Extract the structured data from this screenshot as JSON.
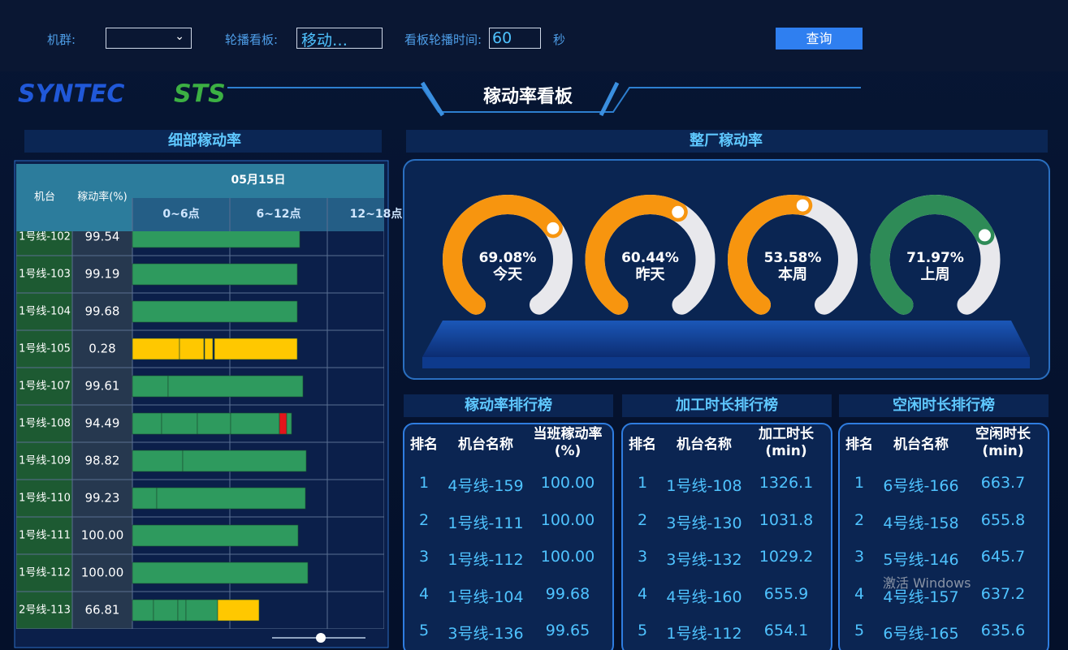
{
  "toolbar": {
    "cluster_label": "机群:",
    "board_label": "轮播看板:",
    "board_value": "移动…",
    "interval_label": "看板轮播时间:",
    "interval_value": "60",
    "interval_unit": "秒",
    "query_button": "查询"
  },
  "header": {
    "logo": "SYNTEC",
    "sub_logo": "STS",
    "title": "稼动率看板"
  },
  "detail": {
    "title": "细部稼动率",
    "columns": {
      "machine": "机台",
      "rate": "稼动率(%)",
      "date": "05月15日",
      "periods": [
        "0~6点",
        "6~12点",
        "12~18点"
      ]
    },
    "rows": [
      {
        "machine": "1号线-102",
        "rate": "99.54",
        "segments": [
          {
            "start": 0,
            "end": 10.3,
            "color": "#2e9a5e"
          }
        ]
      },
      {
        "machine": "1号线-103",
        "rate": "99.19",
        "segments": [
          {
            "start": 0,
            "end": 10.15,
            "color": "#2e9a5e"
          }
        ]
      },
      {
        "machine": "1号线-104",
        "rate": "99.68",
        "segments": [
          {
            "start": 0,
            "end": 10.15,
            "color": "#2e9a5e"
          }
        ]
      },
      {
        "machine": "1号线-105",
        "rate": "0.28",
        "segments": [
          {
            "start": 0,
            "end": 2.9,
            "color": "#ffc800"
          },
          {
            "start": 2.9,
            "end": 4.4,
            "color": "#ffc800"
          },
          {
            "start": 4.45,
            "end": 4.95,
            "color": "#ffc800"
          },
          {
            "start": 5.05,
            "end": 10.15,
            "color": "#ffc800"
          }
        ]
      },
      {
        "machine": "1号线-107",
        "rate": "99.61",
        "segments": [
          {
            "start": 0,
            "end": 2.2,
            "color": "#2e9a5e"
          },
          {
            "start": 2.2,
            "end": 10.5,
            "color": "#2e9a5e"
          }
        ]
      },
      {
        "machine": "1号线-108",
        "rate": "94.49",
        "segments": [
          {
            "start": 0,
            "end": 1.8,
            "color": "#2e9a5e"
          },
          {
            "start": 1.8,
            "end": 4.0,
            "color": "#2e9a5e"
          },
          {
            "start": 4.0,
            "end": 6.05,
            "color": "#2e9a5e"
          },
          {
            "start": 6.05,
            "end": 9.05,
            "color": "#2e9a5e"
          },
          {
            "start": 9.05,
            "end": 9.5,
            "color": "#e3141b"
          },
          {
            "start": 9.5,
            "end": 9.8,
            "color": "#2e9a5e"
          }
        ]
      },
      {
        "machine": "1号线-109",
        "rate": "98.82",
        "segments": [
          {
            "start": 0,
            "end": 3.1,
            "color": "#2e9a5e"
          },
          {
            "start": 3.1,
            "end": 10.7,
            "color": "#2e9a5e"
          }
        ]
      },
      {
        "machine": "1号线-110",
        "rate": "99.23",
        "segments": [
          {
            "start": 0,
            "end": 1.5,
            "color": "#2e9a5e"
          },
          {
            "start": 1.5,
            "end": 10.65,
            "color": "#2e9a5e"
          }
        ]
      },
      {
        "machine": "1号线-111",
        "rate": "100.00",
        "segments": [
          {
            "start": 0,
            "end": 10.2,
            "color": "#2e9a5e"
          }
        ]
      },
      {
        "machine": "1号线-112",
        "rate": "100.00",
        "segments": [
          {
            "start": 0,
            "end": 10.8,
            "color": "#2e9a5e"
          }
        ]
      },
      {
        "machine": "2号线-113",
        "rate": "66.81",
        "segments": [
          {
            "start": 0,
            "end": 1.3,
            "color": "#2e9a5e"
          },
          {
            "start": 1.3,
            "end": 2.8,
            "color": "#2e9a5e"
          },
          {
            "start": 2.8,
            "end": 3.3,
            "color": "#2e9a5e"
          },
          {
            "start": 3.3,
            "end": 5.25,
            "color": "#2e9a5e"
          },
          {
            "start": 5.25,
            "end": 7.8,
            "color": "#ffc800"
          }
        ]
      }
    ]
  },
  "plant": {
    "title": "整厂稼动率",
    "gauges": [
      {
        "label": "今天",
        "value": 69.08,
        "value_label": "69.08%",
        "color": "#f7950f"
      },
      {
        "label": "昨天",
        "value": 60.44,
        "value_label": "60.44%",
        "color": "#f7950f"
      },
      {
        "label": "本周",
        "value": 53.58,
        "value_label": "53.58%",
        "color": "#f7950f"
      },
      {
        "label": "上周",
        "value": 71.97,
        "value_label": "71.97%",
        "color": "#2e8b57"
      }
    ]
  },
  "rankings": [
    {
      "title": "稼动率排行榜",
      "headers": [
        "排名",
        "机台名称",
        "当班稼动率(%)"
      ],
      "rows": [
        [
          "1",
          "4号线-159",
          "100.00"
        ],
        [
          "2",
          "1号线-111",
          "100.00"
        ],
        [
          "3",
          "1号线-112",
          "100.00"
        ],
        [
          "4",
          "1号线-104",
          "99.68"
        ],
        [
          "5",
          "3号线-136",
          "99.65"
        ]
      ]
    },
    {
      "title": "加工时长排行榜",
      "headers": [
        "排名",
        "机台名称",
        "加工时长(min)"
      ],
      "rows": [
        [
          "1",
          "1号线-108",
          "1326.1"
        ],
        [
          "2",
          "3号线-130",
          "1031.8"
        ],
        [
          "3",
          "3号线-132",
          "1029.2"
        ],
        [
          "4",
          "4号线-160",
          "655.9"
        ],
        [
          "5",
          "1号线-112",
          "654.1"
        ]
      ]
    },
    {
      "title": "空闲时长排行榜",
      "headers": [
        "排名",
        "机台名称",
        "空闲时长(min)"
      ],
      "rows": [
        [
          "1",
          "6号线-166",
          "663.7"
        ],
        [
          "2",
          "4号线-158",
          "655.8"
        ],
        [
          "3",
          "5号线-146",
          "645.7"
        ],
        [
          "4",
          "4号线-157",
          "637.2"
        ],
        [
          "5",
          "6号线-165",
          "635.6"
        ]
      ]
    }
  ],
  "watermark": "激活 Windows"
}
